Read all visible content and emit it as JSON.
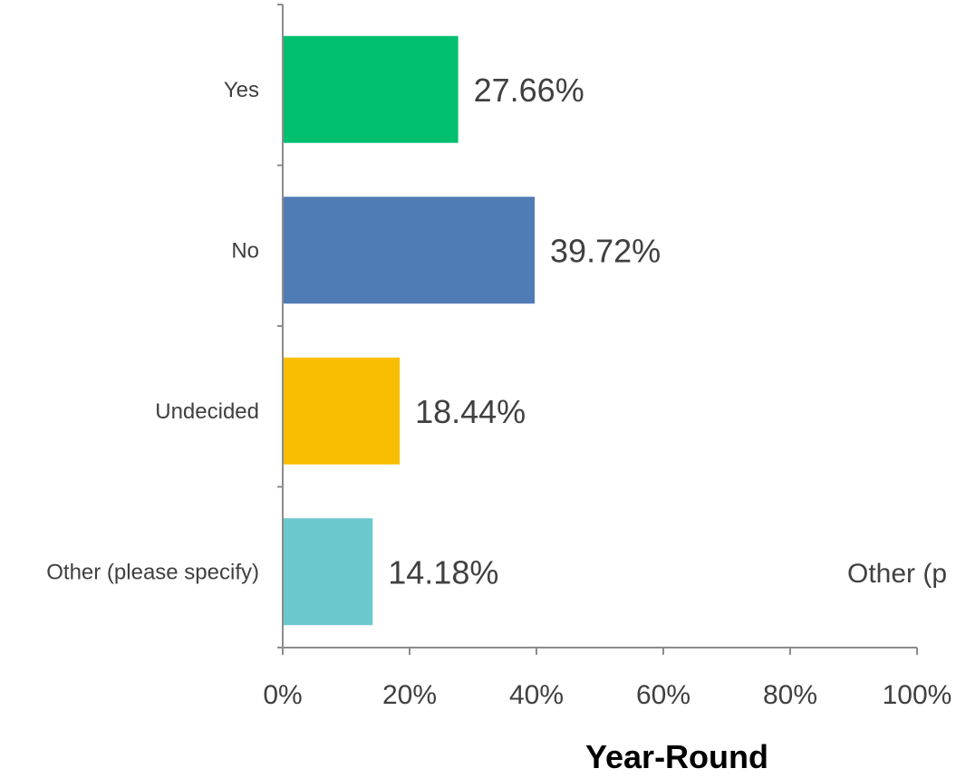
{
  "chart_data": {
    "type": "bar",
    "orientation": "horizontal",
    "title": "Year-Round",
    "categories": [
      "Yes",
      "No",
      "Undecided",
      "Other (please specify)"
    ],
    "values": [
      27.66,
      39.72,
      18.44,
      14.18
    ],
    "value_labels": [
      "27.66%",
      "39.72%",
      "18.44%",
      "14.18%"
    ],
    "colors": [
      "#00BF6F",
      "#507CB6",
      "#F9BE00",
      "#6BC8CD"
    ],
    "xlim": [
      0,
      100
    ],
    "x_ticks": [
      0,
      20,
      40,
      60,
      80,
      100
    ],
    "x_tick_labels": [
      "0%",
      "20%",
      "40%",
      "60%",
      "80%",
      "100%"
    ],
    "grid": false,
    "legend": "none"
  },
  "overflow_text": "Other (p"
}
